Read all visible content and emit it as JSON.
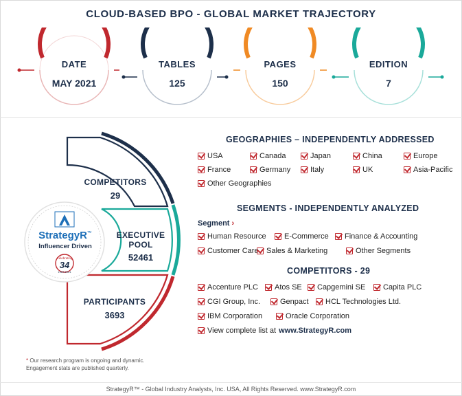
{
  "title": "CLOUD-BASED BPO - GLOBAL MARKET TRAJECTORY",
  "stats": [
    {
      "label": "DATE",
      "value": "MAY 2021",
      "color": "#c0282e"
    },
    {
      "label": "TABLES",
      "value": "125",
      "color": "#1d2f4a"
    },
    {
      "label": "PAGES",
      "value": "150",
      "color": "#f08a24"
    },
    {
      "label": "EDITION",
      "value": "7",
      "color": "#1aa99a"
    }
  ],
  "funnel": {
    "competitors": {
      "label": "COMPETITORS",
      "value": "29",
      "color": "#1d2f4a"
    },
    "executive": {
      "label1": "EXECUTIVE",
      "label2": "POOL",
      "value": "52461",
      "color": "#1aa99a"
    },
    "participants": {
      "label": "PARTICIPANTS",
      "value": "3693",
      "color": "#c0282e"
    }
  },
  "logo": {
    "brand": "StrategyR",
    "trademark": "™",
    "tagline": "Influencer Driven",
    "badge_top": "Celebrating",
    "badge_number": "34",
    "badge_bottom": "1987-2021"
  },
  "note": {
    "star": "*",
    "line1": " Our research program is ongoing and dynamic.",
    "line2": "Engagement stats are published quarterly."
  },
  "geographies": {
    "title": "GEOGRAPHIES – INDEPENDENTLY ADDRESSED",
    "items": [
      "USA",
      "Canada",
      "Japan",
      "China",
      "Europe",
      "France",
      "Germany",
      "Italy",
      "UK",
      "Asia-Pacific",
      "Other Geographies"
    ]
  },
  "segments": {
    "title": "SEGMENTS - INDEPENDENTLY ANALYZED",
    "subtitle": "Segment",
    "items": [
      "Human Resource",
      "E-Commerce",
      "Finance & Accounting",
      "Customer Care",
      "Sales & Marketing",
      "Other Segments"
    ]
  },
  "competitors": {
    "title": "COMPETITORS - 29",
    "items": [
      "Accenture PLC",
      "Atos SE",
      "Capgemini SE",
      "Capita PLC",
      "CGI Group, Inc.",
      "Genpact",
      "HCL Technologies Ltd.",
      "IBM Corporation",
      "Oracle Corporation"
    ],
    "view_text": "View complete list at",
    "view_link": "www.StrategyR.com"
  },
  "footer": "StrategyR™ - Global Industry Analysts, Inc. USA, All Rights Reserved. www.StrategyR.com"
}
